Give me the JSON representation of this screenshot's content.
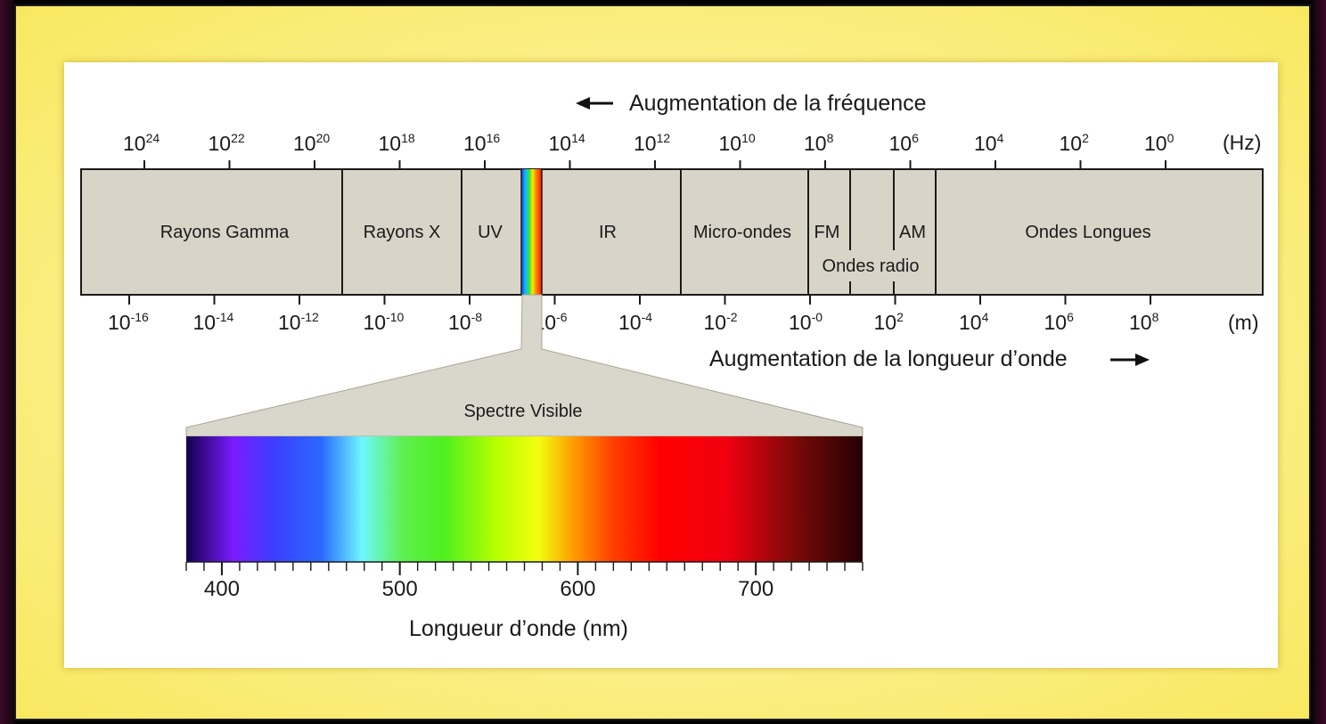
{
  "frequency_title": "Augmentation de la fréquence",
  "wavelength_title": "Augmentation de la longueur d’onde",
  "frequency_unit": "(Hz)",
  "wavelength_unit": "(m)",
  "frequency_ticks": [
    {
      "base": "10",
      "exp": "24"
    },
    {
      "base": "10",
      "exp": "22"
    },
    {
      "base": "10",
      "exp": "20"
    },
    {
      "base": "10",
      "exp": "18"
    },
    {
      "base": "10",
      "exp": "16"
    },
    {
      "base": "10",
      "exp": "14"
    },
    {
      "base": "10",
      "exp": "12"
    },
    {
      "base": "10",
      "exp": "10"
    },
    {
      "base": "10",
      "exp": "8"
    },
    {
      "base": "10",
      "exp": "6"
    },
    {
      "base": "10",
      "exp": "4"
    },
    {
      "base": "10",
      "exp": "2"
    },
    {
      "base": "10",
      "exp": "0"
    }
  ],
  "wavelength_ticks": [
    {
      "base": "10",
      "exp": "-16"
    },
    {
      "base": "10",
      "exp": "-14"
    },
    {
      "base": "10",
      "exp": "-12"
    },
    {
      "base": "10",
      "exp": "-10"
    },
    {
      "base": "10",
      "exp": "-8"
    },
    {
      "base": "10",
      "exp": "-6"
    },
    {
      "base": "10",
      "exp": "-4"
    },
    {
      "base": "10",
      "exp": "-2"
    },
    {
      "base": "10",
      "exp": "-0"
    },
    {
      "base": "10",
      "exp": "2"
    },
    {
      "base": "10",
      "exp": "4"
    },
    {
      "base": "10",
      "exp": "6"
    },
    {
      "base": "10",
      "exp": "8"
    }
  ],
  "bands": {
    "gamma": "Rayons Gamma",
    "xray": "Rayons X",
    "uv": "UV",
    "ir": "IR",
    "micro": "Micro-ondes",
    "fm": "FM",
    "am": "AM",
    "radio": "Ondes radio",
    "long": "Ondes Longues"
  },
  "visible_title": "Spectre Visible",
  "visible_axis_label": "Longueur d’onde (nm)",
  "visible_ticks": [
    "400",
    "500",
    "600",
    "700"
  ],
  "colors": {
    "band_fill": "#d8d4c8",
    "cone_fill": "#d9d6cc",
    "outline": "#1a1a1a"
  }
}
